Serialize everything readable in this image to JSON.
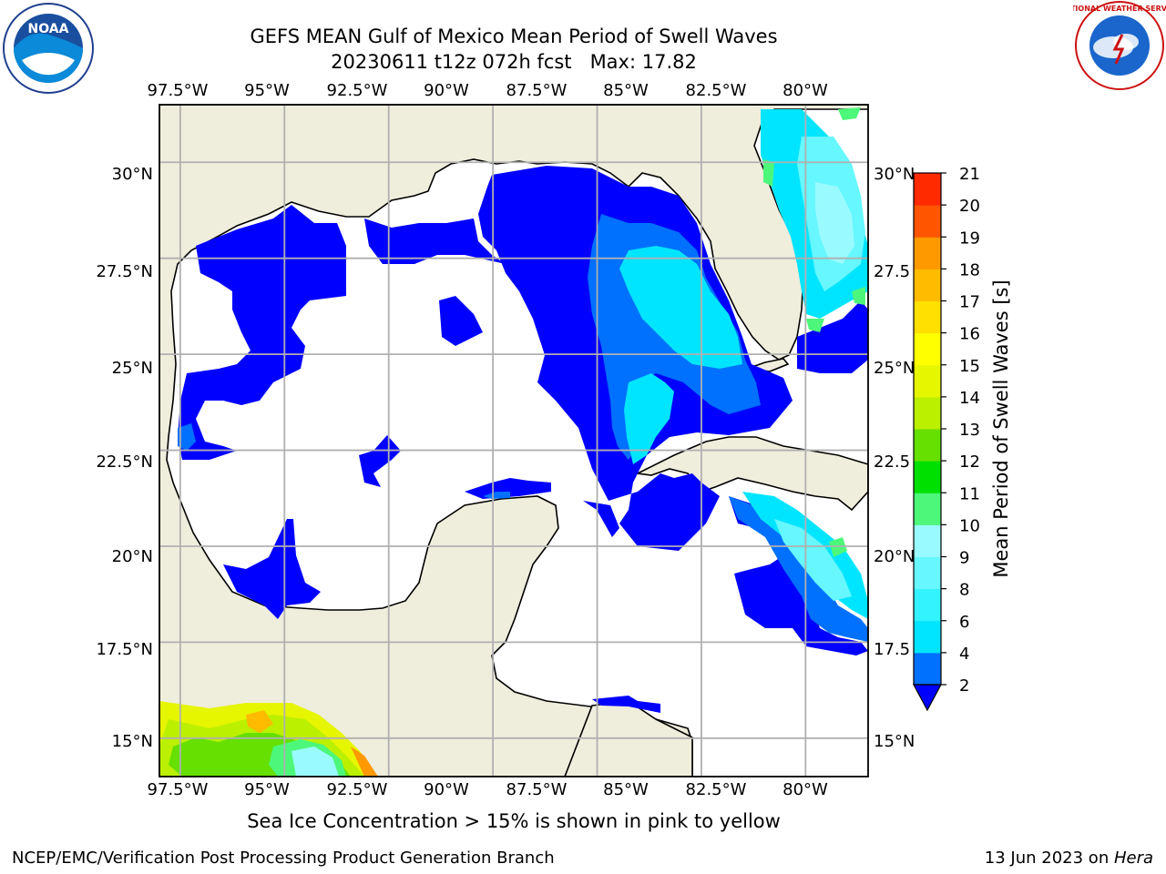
{
  "title": {
    "line1": "GEFS MEAN Gulf of Mexico Mean Period of Swell Waves",
    "line2": "20230611 t12z 072h fcst   Max: 17.82"
  },
  "caption": "Sea Ice Concentration > 15% is shown in pink to yellow",
  "footer": {
    "left": "NCEP/EMC/Verification Post Processing Product Generation Branch",
    "right_prefix": "13 Jun 2023 on ",
    "right_italic": "Hera"
  },
  "logos": {
    "left": {
      "icon": "noaa-logo",
      "text": "NOAA"
    },
    "right": {
      "icon": "nws-logo",
      "text": "NATIONAL WEATHER SERVICE"
    }
  },
  "map": {
    "lon_range": [
      -98,
      -81
    ],
    "lat_range": [
      14,
      31.5
    ],
    "lon_ticks": [
      "97.5°W",
      "95°W",
      "92.5°W",
      "90°W",
      "87.5°W",
      "85°W",
      "82.5°W",
      "80°W"
    ],
    "lat_ticks_left": [
      "30°N",
      "27.5°N",
      "25°N",
      "22.5°N",
      "20°N",
      "17.5°N",
      "15°N"
    ],
    "lat_ticks_right": [
      "30°N",
      "27.5",
      "25°N",
      "22.5",
      "20°N",
      "17.5",
      "15°N"
    ],
    "colors": {
      "land": "#efeddc",
      "gridline": "#b0b0b0",
      "ocean_missing": "#ffffff"
    }
  },
  "colorbar": {
    "label": "Mean Period of Swell Waves [s]",
    "ticks": [
      "2",
      "4",
      "6",
      "8",
      "9",
      "10",
      "11",
      "12",
      "13",
      "14",
      "15",
      "16",
      "17",
      "18",
      "19",
      "20",
      "21"
    ],
    "colors": [
      "#0070ff",
      "#00e5ff",
      "#33f3ff",
      "#66f7ff",
      "#99fbff",
      "#4df77a",
      "#00e000",
      "#66e000",
      "#bbf000",
      "#e6f500",
      "#ffff00",
      "#ffe000",
      "#ffbb00",
      "#ff9900",
      "#ff5500",
      "#ff2a00"
    ],
    "under_color": "#0000ff"
  }
}
